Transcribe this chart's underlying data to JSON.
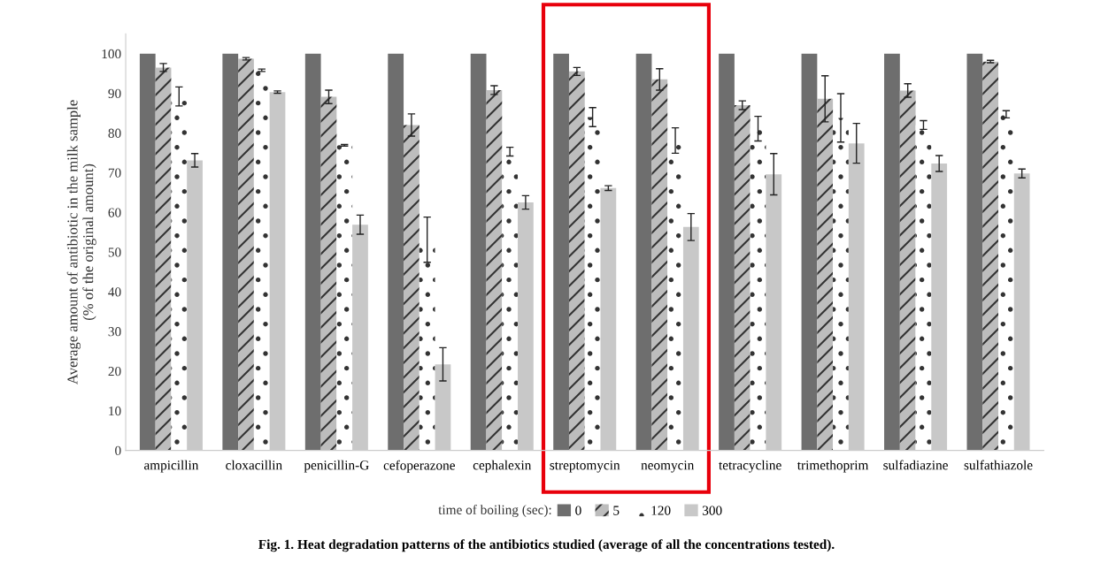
{
  "chart_data": {
    "type": "bar",
    "categories": [
      "ampicillin",
      "cloxacillin",
      "penicillin-G",
      "cefoperazone",
      "cephalexin",
      "streptomycin",
      "neomycin",
      "tetracycline",
      "trimethoprim",
      "sulfadiazine",
      "sulfathiazole"
    ],
    "series": [
      {
        "name": "0",
        "color": "#6e6e6e",
        "values": [
          100,
          100,
          100,
          100,
          100,
          100,
          100,
          100,
          100,
          100,
          100
        ]
      },
      {
        "name": "5",
        "color": "#bdbdbd",
        "values": [
          96.5,
          98.7,
          89.1,
          82.0,
          90.8,
          95.5,
          93.5,
          87.0,
          88.6,
          90.7,
          98.0
        ],
        "errors": [
          1.0,
          0.3,
          1.7,
          2.8,
          1.1,
          1.0,
          2.7,
          1.1,
          5.8,
          1.7,
          0.3
        ]
      },
      {
        "name": "120",
        "color": "#ffffff",
        "values": [
          89.2,
          95.8,
          76.9,
          53.1,
          75.3,
          84.0,
          78.1,
          81.1,
          83.8,
          82.0,
          84.7
        ],
        "errors": [
          2.4,
          0.3,
          0.2,
          5.7,
          1.1,
          2.4,
          3.2,
          3.1,
          6.1,
          1.1,
          0.9
        ]
      },
      {
        "name": "300",
        "color": "#c8c8c8",
        "values": [
          73.1,
          90.3,
          56.9,
          21.7,
          62.5,
          66.1,
          56.3,
          69.6,
          77.4,
          72.3,
          69.8
        ],
        "errors": [
          1.7,
          0.3,
          2.4,
          4.2,
          1.7,
          0.6,
          3.4,
          5.2,
          5.0,
          2.0,
          1.1
        ]
      }
    ],
    "ylabel": "Average amount of antibiotic in the milk sample\n(% of the original amount)",
    "legend_title": "time of boiling (sec):",
    "legend": "bottom",
    "ylim": [
      0,
      105
    ],
    "yticks": [
      0,
      10,
      20,
      30,
      40,
      50,
      60,
      70,
      80,
      90,
      100
    ],
    "grid": false,
    "annotations": [
      "Fig. 1. Heat degradation patterns of the antibiotics studied (average of all the concentrations tested)."
    ]
  }
}
